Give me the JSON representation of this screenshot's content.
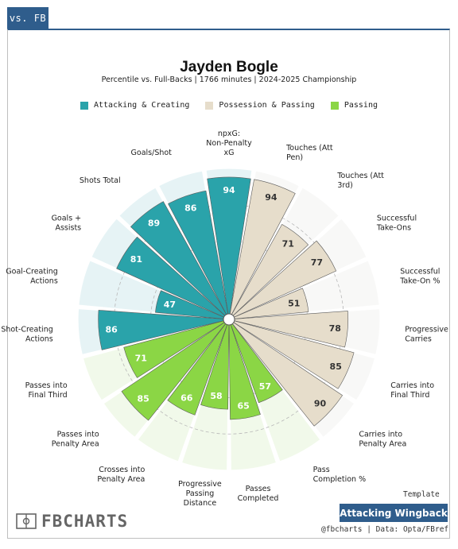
{
  "tab_label": "vs. FB",
  "player_name": "Jayden Bogle",
  "subtitle": "Percentile vs. Full-Backs | 1766 minutes | 2024-2025 Championship",
  "legend": [
    {
      "label": "Attacking & Creating",
      "color": "#2aa3aa"
    },
    {
      "label": "Possession & Passing",
      "color": "#e6ddcb"
    },
    {
      "label": "Passing",
      "color": "#8bd645"
    }
  ],
  "template_label": "Template",
  "template_name": "Attacking Wingback",
  "credit": "@fbcharts | Data: Opta/FBref",
  "logo_text": "FBCHARTS",
  "logo_icon": "football-pitch-icon",
  "chart_data": {
    "type": "radar-bar",
    "scale_max": 100,
    "categories": [
      {
        "label": "npxG: Non-Penalty xG",
        "value": 94,
        "group": "Attacking & Creating"
      },
      {
        "label": "Touches (Att Pen)",
        "value": 94,
        "group": "Possession & Passing"
      },
      {
        "label": "Touches (Att 3rd)",
        "value": 71,
        "group": "Possession & Passing"
      },
      {
        "label": "Successful Take-Ons",
        "value": 77,
        "group": "Possession & Passing"
      },
      {
        "label": "Successful Take-On %",
        "value": 51,
        "group": "Possession & Passing"
      },
      {
        "label": "Progressive Carries",
        "value": 78,
        "group": "Possession & Passing"
      },
      {
        "label": "Carries into Final Third",
        "value": 85,
        "group": "Possession & Passing"
      },
      {
        "label": "Carries into Penalty Area",
        "value": 90,
        "group": "Possession & Passing"
      },
      {
        "label": "Pass Completion %",
        "value": 57,
        "group": "Passing"
      },
      {
        "label": "Passes Completed",
        "value": 65,
        "group": "Passing"
      },
      {
        "label": "Progressive Passing Distance",
        "value": 58,
        "group": "Passing"
      },
      {
        "label": "Crosses into Penalty Area",
        "value": 66,
        "group": "Passing"
      },
      {
        "label": "Passes into Penalty Area",
        "value": 85,
        "group": "Passing"
      },
      {
        "label": "Passes into Final Third",
        "value": 71,
        "group": "Passing"
      },
      {
        "label": "Shot-Creating Actions",
        "value": 86,
        "group": "Attacking & Creating"
      },
      {
        "label": "Goal-Creating Actions",
        "value": 47,
        "group": "Attacking & Creating"
      },
      {
        "label": "Goals + Assists",
        "value": 81,
        "group": "Attacking & Creating"
      },
      {
        "label": "Shots Total",
        "value": 89,
        "group": "Attacking & Creating"
      },
      {
        "label": "Goals/Shot",
        "value": 86,
        "group": "Attacking & Creating"
      }
    ]
  }
}
